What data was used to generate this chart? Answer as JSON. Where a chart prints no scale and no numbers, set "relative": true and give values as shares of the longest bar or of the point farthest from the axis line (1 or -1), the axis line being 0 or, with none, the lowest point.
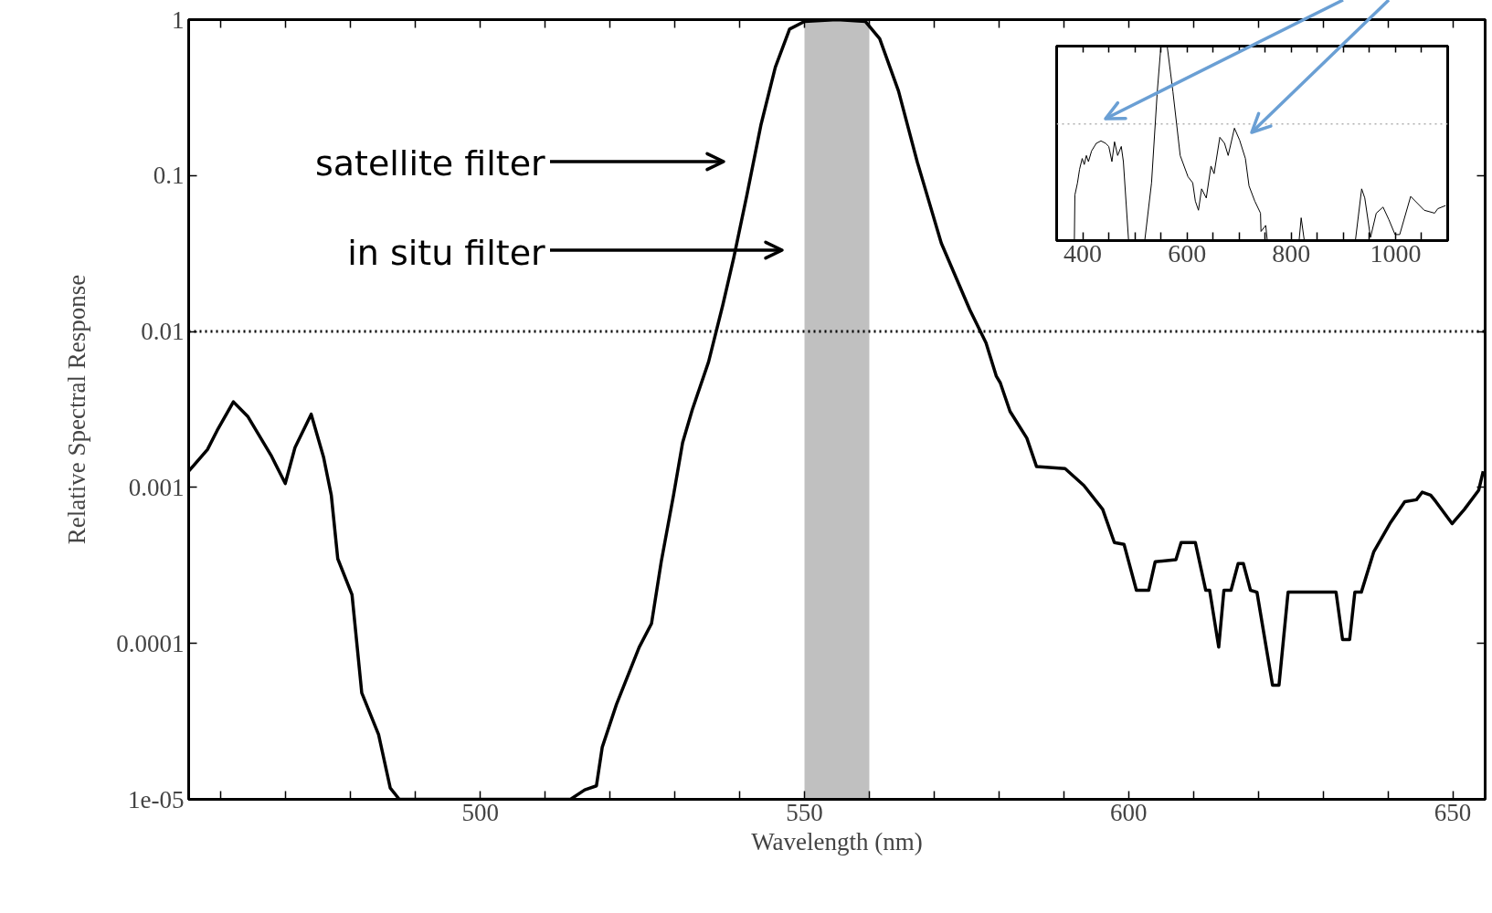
{
  "chart_data": [
    {
      "type": "line",
      "xlabel": "Wavelength (nm)",
      "ylabel": "Relative Spectral Response",
      "log": "y",
      "x": [
        455,
        457.9,
        459.4,
        461.9,
        464.1,
        467.7,
        469.9,
        471.4,
        473.9,
        475.8,
        477.0,
        478.0,
        480.2,
        481.7,
        484.3,
        486.1,
        487.5,
        513.9,
        516.1,
        517.9,
        518.8,
        521.0,
        524.5,
        526.4,
        527.9,
        529.8,
        531.2,
        532.7,
        535.2,
        537.4,
        539.1,
        541.1,
        543.3,
        545.5,
        547.7,
        550,
        555,
        559.4,
        561.6,
        564.5,
        567.4,
        571.1,
        575.5,
        578.0,
        579.6,
        580.2,
        581.7,
        584.3,
        585.8,
        590.2,
        593.1,
        596.0,
        597.8,
        599.3,
        601.2,
        603.1,
        604.1,
        607.3,
        608.1,
        610.3,
        611.9,
        612.5,
        613.9,
        614.7,
        615.8,
        616.9,
        617.7,
        618.8,
        619.8,
        622.2,
        623.2,
        624.6,
        632.0,
        633.0,
        634.1,
        634.9,
        635.9,
        637.8,
        640.3,
        642.6,
        644.4,
        645.3,
        646.6,
        647.4,
        649.9,
        651.8,
        654.0,
        654.7
      ],
      "series": [
        {
          "color": "#000000",
          "values": [
            0.00127,
            0.00175,
            0.00232,
            0.00354,
            0.00286,
            0.00161,
            0.00106,
            0.0018,
            0.00295,
            0.00157,
            0.000893,
            0.000349,
            0.000205,
            4.82e-05,
            2.6e-05,
            1.18e-05,
            1e-05,
            1e-05,
            1.15e-05,
            1.22e-05,
            2.16e-05,
            4.07e-05,
            9.46e-05,
            0.000134,
            0.000334,
            0.000893,
            0.00194,
            0.00316,
            0.00638,
            0.0148,
            0.0299,
            0.0745,
            0.213,
            0.495,
            0.869,
            0.973,
            1,
            0.973,
            0.755,
            0.349,
            0.122,
            0.0369,
            0.0138,
            0.00845,
            0.00516,
            0.00469,
            0.00308,
            0.00207,
            0.00136,
            0.00132,
            0.00103,
            0.000724,
            0.000443,
            0.000431,
            0.000219,
            0.000219,
            0.000334,
            0.000344,
            0.000443,
            0.000443,
            0.000219,
            0.000219,
            9.46e-05,
            0.000219,
            0.000219,
            0.000325,
            0.000325,
            0.000219,
            0.000213,
            5.4e-05,
            5.4e-05,
            0.000213,
            0.000213,
            0.000106,
            0.000106,
            0.000213,
            0.000213,
            0.000385,
            0.000586,
            0.000811,
            0.000834,
            0.000933,
            0.000893,
            0.000811,
            0.000586,
            0.000724,
            0.000959,
            0.00127
          ]
        }
      ],
      "xlim": [
        455,
        655
      ],
      "ylim": [
        1e-05,
        1
      ],
      "xticks": [
        {
          "value": 460,
          "label": null
        },
        {
          "value": 470,
          "label": null
        },
        {
          "value": 480,
          "label": null
        },
        {
          "value": 490,
          "label": null
        },
        500,
        {
          "value": 510,
          "label": null
        },
        {
          "value": 520,
          "label": null
        },
        {
          "value": 530,
          "label": null
        },
        {
          "value": 540,
          "label": null
        },
        550,
        {
          "value": 560,
          "label": null
        },
        {
          "value": 570,
          "label": null
        },
        {
          "value": 580,
          "label": null
        },
        {
          "value": 590,
          "label": null
        },
        600,
        {
          "value": 610,
          "label": null
        },
        {
          "value": 620,
          "label": null
        },
        {
          "value": 630,
          "label": null
        },
        {
          "value": 640,
          "label": null
        },
        650
      ],
      "yticks": [
        {
          "value": 1e-05,
          "label": "1e-05"
        },
        {
          "value": 0.0001,
          "label": "0.0001"
        },
        {
          "value": 0.001,
          "label": "0.001"
        },
        {
          "value": 0.01,
          "label": "0.01"
        },
        {
          "value": 0.1,
          "label": "0.1"
        },
        {
          "value": 1,
          "label": "1"
        }
      ],
      "ref_lines": [
        {
          "axis": "y",
          "value": 0.01,
          "color": "#000000",
          "line_style": "dotted"
        }
      ],
      "bands": [
        {
          "axis": "x",
          "from": 550,
          "to": 560,
          "color": "#c0c0c0"
        }
      ],
      "annotations": [
        "satellite filter",
        "in situ filter"
      ]
    },
    {
      "type": "line",
      "relative": true,
      "tick_labels": "x",
      "x": [
        384,
        385,
        390,
        394,
        399,
        403,
        407,
        411,
        417,
        426,
        435,
        444,
        450,
        456,
        461,
        467,
        474,
        478,
        488,
        519,
        532,
        543,
        550,
        562,
        573,
        587,
        602,
        611,
        616,
        622,
        628,
        637,
        646,
        652,
        663,
        672,
        679,
        691,
        701,
        712,
        719,
        730,
        741,
        742,
        751,
        754,
        815,
        819,
        825,
        923,
        935,
        941,
        952,
        963,
        976,
        987,
        999,
        1008,
        1029,
        1055,
        1075,
        1081,
        1096
      ],
      "series": [
        {
          "color": "#000000",
          "values": [
            0,
            0.234,
            0.297,
            0.367,
            0.422,
            0.391,
            0.4375,
            0.406,
            0.461,
            0.5,
            0.5125,
            0.5,
            0.484,
            0.406,
            0.508,
            0.4375,
            0.484,
            0.406,
            0,
            0,
            0.297,
            0.766,
            1,
            1,
            0.766,
            0.4375,
            0.328,
            0.297,
            0.203,
            0.156,
            0.266,
            0.219,
            0.383,
            0.344,
            0.531,
            0.5,
            0.4375,
            0.578,
            0.516,
            0.422,
            0.281,
            0.203,
            0.141,
            0.047,
            0.078,
            0,
            0,
            0.117,
            0,
            0,
            0.266,
            0.219,
            0.016,
            0.141,
            0.172,
            0.109,
            0.031,
            0.031,
            0.227,
            0.156,
            0.141,
            0.164,
            0.18
          ]
        }
      ],
      "xlim": [
        350,
        1100
      ],
      "xticks": [
        {
          "value": 350,
          "label": null
        },
        400,
        {
          "value": 450,
          "label": null
        },
        {
          "value": 500,
          "label": null
        },
        {
          "value": 550,
          "label": null
        },
        600,
        {
          "value": 650,
          "label": null
        },
        {
          "value": 700,
          "label": null
        },
        {
          "value": 750,
          "label": null
        },
        800,
        {
          "value": 850,
          "label": null
        },
        {
          "value": 900,
          "label": null
        },
        {
          "value": 950,
          "label": null
        },
        1000,
        {
          "value": 1050,
          "label": null
        }
      ],
      "ref_lines": [
        {
          "axis": "y",
          "value": 0.6,
          "color": "#b0b0b0",
          "line_style": "dotted"
        }
      ]
    }
  ]
}
